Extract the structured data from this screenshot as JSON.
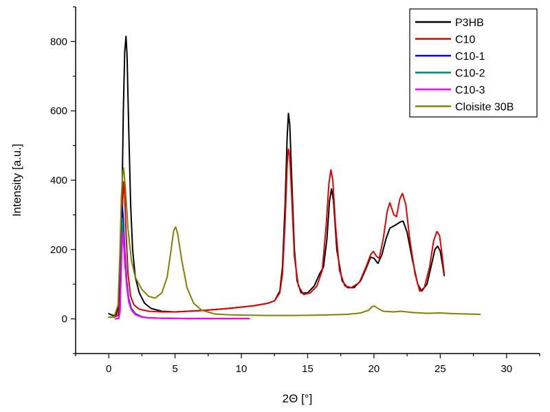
{
  "chart_data": {
    "type": "line",
    "xlabel": "2Θ [°]",
    "ylabel": "Intensity [a.u.]",
    "xlim": [
      -2.5,
      32.5
    ],
    "ylim": [
      -100,
      900
    ],
    "xticks": [
      0,
      5,
      10,
      15,
      20,
      25,
      30
    ],
    "yticks": [
      0,
      200,
      400,
      600,
      800
    ],
    "legend_position": "top-right",
    "series": [
      {
        "name": "P3HB",
        "color": "#000000",
        "points": [
          [
            0.0,
            15
          ],
          [
            0.3,
            10
          ],
          [
            0.55,
            12
          ],
          [
            0.75,
            40
          ],
          [
            0.9,
            150
          ],
          [
            1.0,
            350
          ],
          [
            1.1,
            600
          ],
          [
            1.2,
            770
          ],
          [
            1.3,
            815
          ],
          [
            1.38,
            760
          ],
          [
            1.5,
            560
          ],
          [
            1.65,
            330
          ],
          [
            1.8,
            200
          ],
          [
            2.0,
            120
          ],
          [
            2.3,
            75
          ],
          [
            2.7,
            45
          ],
          [
            3.2,
            30
          ],
          [
            4.0,
            22
          ],
          [
            5.0,
            20
          ],
          [
            6.0,
            22
          ],
          [
            7.0,
            24
          ],
          [
            8.0,
            27
          ],
          [
            9.0,
            30
          ],
          [
            10.0,
            34
          ],
          [
            11.0,
            38
          ],
          [
            12.0,
            45
          ],
          [
            12.5,
            52
          ],
          [
            12.9,
            80
          ],
          [
            13.1,
            150
          ],
          [
            13.3,
            330
          ],
          [
            13.45,
            520
          ],
          [
            13.55,
            593
          ],
          [
            13.65,
            560
          ],
          [
            13.8,
            400
          ],
          [
            14.0,
            200
          ],
          [
            14.2,
            110
          ],
          [
            14.5,
            75
          ],
          [
            15.0,
            75
          ],
          [
            15.5,
            95
          ],
          [
            15.9,
            130
          ],
          [
            16.2,
            150
          ],
          [
            16.45,
            230
          ],
          [
            16.65,
            340
          ],
          [
            16.8,
            375
          ],
          [
            16.95,
            340
          ],
          [
            17.2,
            200
          ],
          [
            17.6,
            110
          ],
          [
            18.0,
            90
          ],
          [
            18.5,
            90
          ],
          [
            19.0,
            110
          ],
          [
            19.4,
            145
          ],
          [
            19.75,
            178
          ],
          [
            20.0,
            175
          ],
          [
            20.3,
            160
          ],
          [
            20.6,
            185
          ],
          [
            20.9,
            230
          ],
          [
            21.2,
            262
          ],
          [
            21.6,
            270
          ],
          [
            22.0,
            280
          ],
          [
            22.2,
            282
          ],
          [
            22.5,
            250
          ],
          [
            22.9,
            170
          ],
          [
            23.3,
            100
          ],
          [
            23.6,
            80
          ],
          [
            24.0,
            100
          ],
          [
            24.3,
            150
          ],
          [
            24.6,
            200
          ],
          [
            24.8,
            210
          ],
          [
            25.0,
            195
          ],
          [
            25.2,
            150
          ],
          [
            25.3,
            125
          ]
        ]
      },
      {
        "name": "C10",
        "color": "#e00000",
        "points": [
          [
            0.0,
            5
          ],
          [
            0.4,
            5
          ],
          [
            0.7,
            10
          ],
          [
            0.85,
            60
          ],
          [
            0.95,
            200
          ],
          [
            1.05,
            340
          ],
          [
            1.12,
            395
          ],
          [
            1.2,
            360
          ],
          [
            1.3,
            250
          ],
          [
            1.45,
            130
          ],
          [
            1.65,
            65
          ],
          [
            1.9,
            40
          ],
          [
            2.3,
            28
          ],
          [
            3.0,
            22
          ],
          [
            4.0,
            20
          ],
          [
            5.0,
            20
          ],
          [
            6.0,
            22
          ],
          [
            7.0,
            24
          ],
          [
            8.0,
            27
          ],
          [
            9.0,
            30
          ],
          [
            10.0,
            34
          ],
          [
            11.0,
            38
          ],
          [
            12.0,
            45
          ],
          [
            12.5,
            52
          ],
          [
            12.9,
            75
          ],
          [
            13.1,
            130
          ],
          [
            13.3,
            280
          ],
          [
            13.45,
            440
          ],
          [
            13.55,
            490
          ],
          [
            13.65,
            470
          ],
          [
            13.8,
            350
          ],
          [
            14.0,
            180
          ],
          [
            14.3,
            95
          ],
          [
            14.7,
            70
          ],
          [
            15.2,
            75
          ],
          [
            15.7,
            95
          ],
          [
            16.1,
            140
          ],
          [
            16.4,
            270
          ],
          [
            16.6,
            390
          ],
          [
            16.75,
            430
          ],
          [
            16.9,
            400
          ],
          [
            17.1,
            270
          ],
          [
            17.4,
            140
          ],
          [
            17.8,
            95
          ],
          [
            18.3,
            90
          ],
          [
            18.9,
            105
          ],
          [
            19.4,
            150
          ],
          [
            19.75,
            185
          ],
          [
            19.95,
            195
          ],
          [
            20.2,
            180
          ],
          [
            20.4,
            175
          ],
          [
            20.7,
            230
          ],
          [
            21.0,
            310
          ],
          [
            21.2,
            335
          ],
          [
            21.5,
            300
          ],
          [
            21.7,
            295
          ],
          [
            21.95,
            345
          ],
          [
            22.15,
            362
          ],
          [
            22.4,
            330
          ],
          [
            22.7,
            230
          ],
          [
            23.1,
            130
          ],
          [
            23.45,
            80
          ],
          [
            23.8,
            90
          ],
          [
            24.2,
            150
          ],
          [
            24.5,
            225
          ],
          [
            24.75,
            252
          ],
          [
            24.95,
            240
          ],
          [
            25.15,
            180
          ],
          [
            25.3,
            130
          ]
        ]
      },
      {
        "name": "C10-1",
        "color": "#0000e0",
        "points": [
          [
            0.5,
            0
          ],
          [
            0.75,
            2
          ],
          [
            0.85,
            30
          ],
          [
            0.95,
            200
          ],
          [
            1.02,
            325
          ],
          [
            1.1,
            290
          ],
          [
            1.2,
            200
          ],
          [
            1.35,
            110
          ],
          [
            1.5,
            60
          ],
          [
            1.7,
            30
          ],
          [
            2.0,
            15
          ],
          [
            2.5,
            6
          ],
          [
            3.0,
            3
          ],
          [
            4.0,
            2
          ],
          [
            6.0,
            1
          ],
          [
            8.0,
            1
          ],
          [
            10.0,
            1
          ],
          [
            10.6,
            1
          ]
        ]
      },
      {
        "name": "C10-2",
        "color": "#008080",
        "points": [
          [
            0.5,
            0
          ],
          [
            0.75,
            2
          ],
          [
            0.85,
            25
          ],
          [
            0.95,
            170
          ],
          [
            1.03,
            290
          ],
          [
            1.1,
            260
          ],
          [
            1.2,
            180
          ],
          [
            1.35,
            100
          ],
          [
            1.5,
            55
          ],
          [
            1.7,
            28
          ],
          [
            2.0,
            13
          ],
          [
            2.5,
            5
          ],
          [
            3.0,
            3
          ],
          [
            4.0,
            2
          ],
          [
            6.0,
            1
          ],
          [
            8.0,
            1
          ],
          [
            10.0,
            1
          ],
          [
            10.6,
            1
          ]
        ]
      },
      {
        "name": "C10-3",
        "color": "#ff00ff",
        "points": [
          [
            0.5,
            0
          ],
          [
            0.75,
            2
          ],
          [
            0.85,
            20
          ],
          [
            0.95,
            150
          ],
          [
            1.03,
            250
          ],
          [
            1.1,
            230
          ],
          [
            1.2,
            165
          ],
          [
            1.35,
            95
          ],
          [
            1.5,
            50
          ],
          [
            1.7,
            26
          ],
          [
            2.0,
            12
          ],
          [
            2.5,
            5
          ],
          [
            3.0,
            3
          ],
          [
            4.0,
            2
          ],
          [
            6.0,
            1
          ],
          [
            8.0,
            1
          ],
          [
            10.0,
            1
          ],
          [
            10.6,
            1
          ]
        ]
      },
      {
        "name": "Cloisite 30B",
        "color": "#808000",
        "points": [
          [
            0.0,
            5
          ],
          [
            0.4,
            5
          ],
          [
            0.7,
            40
          ],
          [
            0.85,
            200
          ],
          [
            0.95,
            350
          ],
          [
            1.05,
            420
          ],
          [
            1.12,
            435
          ],
          [
            1.25,
            380
          ],
          [
            1.45,
            260
          ],
          [
            1.7,
            170
          ],
          [
            2.0,
            120
          ],
          [
            2.5,
            85
          ],
          [
            3.0,
            65
          ],
          [
            3.5,
            60
          ],
          [
            4.0,
            75
          ],
          [
            4.4,
            120
          ],
          [
            4.7,
            200
          ],
          [
            4.9,
            255
          ],
          [
            5.05,
            265
          ],
          [
            5.2,
            245
          ],
          [
            5.5,
            170
          ],
          [
            5.9,
            90
          ],
          [
            6.4,
            45
          ],
          [
            7.0,
            25
          ],
          [
            8.0,
            14
          ],
          [
            9.0,
            12
          ],
          [
            10.0,
            11
          ],
          [
            12.0,
            10
          ],
          [
            14.0,
            10
          ],
          [
            16.0,
            11
          ],
          [
            18.0,
            13
          ],
          [
            19.0,
            17
          ],
          [
            19.6,
            25
          ],
          [
            19.85,
            35
          ],
          [
            20.05,
            37
          ],
          [
            20.3,
            30
          ],
          [
            20.7,
            22
          ],
          [
            21.5,
            20
          ],
          [
            22.0,
            22
          ],
          [
            23.0,
            18
          ],
          [
            24.0,
            16
          ],
          [
            25.0,
            17
          ],
          [
            26.0,
            15
          ],
          [
            27.0,
            14
          ],
          [
            28.0,
            13
          ]
        ]
      }
    ]
  }
}
